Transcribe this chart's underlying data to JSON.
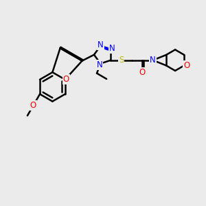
{
  "background_color": "#ebebeb",
  "bond_color": "#000000",
  "N_color": "#0000ff",
  "O_color": "#ff0000",
  "S_color": "#b8b800",
  "C_color": "#000000",
  "line_width": 1.8,
  "font_size": 8.5,
  "figsize": [
    3.0,
    3.0
  ],
  "dpi": 100,
  "xlim": [
    0,
    10
  ],
  "ylim": [
    0,
    10
  ]
}
